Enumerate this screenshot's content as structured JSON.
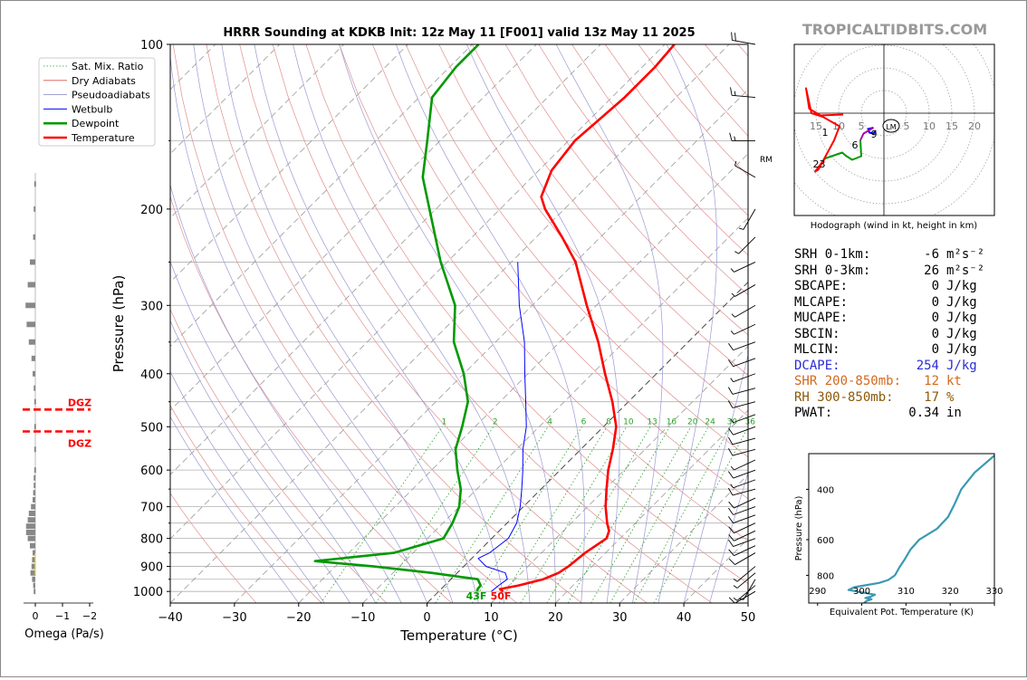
{
  "source_label": "TROPICALTIDBITS.COM",
  "chart_data": [
    {
      "type": "line",
      "chart": "skew-t",
      "title": "HRRR Sounding at KDKB Init: 12z May 11 [F001] valid 13z May 11 2025",
      "xlabel": "Temperature (°C)",
      "ylabel": "Pressure (hPa)",
      "log_y": true,
      "xlim": [
        -40,
        50
      ],
      "ylim": [
        1050,
        100
      ],
      "x_ticks": [
        "−40",
        "−30",
        "−20",
        "−10",
        "0",
        "10",
        "20",
        "30",
        "40",
        "50"
      ],
      "y_ticks": [
        "100",
        "200",
        "300",
        "400",
        "500",
        "600",
        "700",
        "800",
        "900",
        "1000"
      ],
      "mixing_ratio_labels": [
        "1",
        "2",
        "4",
        "6",
        "8",
        "10",
        "13",
        "16",
        "20",
        "24",
        "30",
        "36"
      ],
      "legend": {
        "position": "top-left",
        "entries": [
          {
            "label": "Sat. Mix. Ratio",
            "color": "#2ca02c",
            "style": "dotted"
          },
          {
            "label": "Dry Adiabats",
            "color": "#d9534f",
            "style": "solid"
          },
          {
            "label": "Pseudoadiabats",
            "color": "#8080c0",
            "style": "solid"
          },
          {
            "label": "Wetbulb",
            "color": "#0000ff",
            "style": "solid"
          },
          {
            "label": "Dewpoint",
            "color": "#009900",
            "style": "solid"
          },
          {
            "label": "Temperature",
            "color": "#ff0000",
            "style": "solid"
          }
        ]
      },
      "surface_labels": {
        "dewpoint": "43F",
        "temperature": "50F"
      },
      "series": [
        {
          "name": "Temperature",
          "color": "#ff0000",
          "points": [
            [
              1000,
              10.0
            ],
            [
              990,
              9.2
            ],
            [
              975,
              11.5
            ],
            [
              950,
              14.4
            ],
            [
              925,
              15.8
            ],
            [
              900,
              16.3
            ],
            [
              850,
              16.8
            ],
            [
              800,
              17.9
            ],
            [
              775,
              17.1
            ],
            [
              750,
              15.6
            ],
            [
              700,
              12.8
            ],
            [
              650,
              10.2
            ],
            [
              600,
              7.5
            ],
            [
              550,
              5.0
            ],
            [
              500,
              2.0
            ],
            [
              450,
              -2.5
            ],
            [
              400,
              -8.0
            ],
            [
              350,
              -14.0
            ],
            [
              300,
              -21.5
            ],
            [
              250,
              -30.0
            ],
            [
              225,
              -36.0
            ],
            [
              200,
              -43.0
            ],
            [
              190,
              -45.5
            ],
            [
              170,
              -48.0
            ],
            [
              150,
              -49.0
            ],
            [
              125,
              -48.0
            ],
            [
              110,
              -48.0
            ],
            [
              100,
              -48.5
            ]
          ]
        },
        {
          "name": "Dewpoint",
          "color": "#009900",
          "points": [
            [
              1000,
              6.0
            ],
            [
              990,
              5.7
            ],
            [
              975,
              5.6
            ],
            [
              950,
              4.2
            ],
            [
              925,
              -4.0
            ],
            [
              900,
              -14.0
            ],
            [
              880,
              -24.0
            ],
            [
              850,
              -13.0
            ],
            [
              800,
              -7.5
            ],
            [
              775,
              -8.0
            ],
            [
              750,
              -8.5
            ],
            [
              700,
              -10.0
            ],
            [
              650,
              -12.5
            ],
            [
              600,
              -16.0
            ],
            [
              550,
              -19.5
            ],
            [
              500,
              -22.0
            ],
            [
              450,
              -25.0
            ],
            [
              400,
              -30.0
            ],
            [
              350,
              -36.5
            ],
            [
              300,
              -42.0
            ],
            [
              250,
              -51.0
            ],
            [
              200,
              -61.0
            ],
            [
              175,
              -67.0
            ],
            [
              150,
              -72.0
            ],
            [
              125,
              -78.0
            ],
            [
              110,
              -79.0
            ],
            [
              100,
              -79.0
            ]
          ]
        },
        {
          "name": "Wetbulb",
          "color": "#0000ff",
          "points": [
            [
              1000,
              8.2
            ],
            [
              975,
              8.4
            ],
            [
              950,
              8.8
            ],
            [
              925,
              7.5
            ],
            [
              900,
              3.5
            ],
            [
              870,
              1.0
            ],
            [
              850,
              1.9
            ],
            [
              800,
              2.6
            ],
            [
              750,
              1.5
            ],
            [
              700,
              -0.5
            ],
            [
              650,
              -3.0
            ],
            [
              600,
              -5.8
            ],
            [
              550,
              -9.0
            ],
            [
              500,
              -12.0
            ],
            [
              450,
              -16.0
            ],
            [
              400,
              -20.5
            ],
            [
              350,
              -25.5
            ],
            [
              300,
              -32.0
            ],
            [
              250,
              -39.0
            ]
          ]
        }
      ]
    },
    {
      "type": "bar",
      "chart": "omega",
      "xlabel": "Omega (Pa/s)",
      "x_ticks": [
        "0",
        "−1",
        "−2"
      ],
      "annotations": [
        "DGZ",
        "DGZ"
      ],
      "dgz_pressures": [
        465,
        510
      ],
      "bars": [
        [
          1000,
          0.03
        ],
        [
          975,
          0.04
        ],
        [
          950,
          0.06
        ],
        [
          925,
          0.09
        ],
        [
          900,
          0.07
        ],
        [
          875,
          0.06
        ],
        [
          850,
          0.05
        ],
        [
          825,
          0.1
        ],
        [
          800,
          0.14
        ],
        [
          780,
          0.17
        ],
        [
          760,
          0.17
        ],
        [
          740,
          0.14
        ],
        [
          720,
          0.12
        ],
        [
          700,
          0.08
        ],
        [
          680,
          0.05
        ],
        [
          660,
          0.04
        ],
        [
          640,
          0.03
        ],
        [
          620,
          0.03
        ],
        [
          600,
          0.02
        ],
        [
          550,
          0.02
        ],
        [
          500,
          0.02
        ],
        [
          450,
          0.02
        ],
        [
          425,
          0.03
        ],
        [
          400,
          0.05
        ],
        [
          375,
          0.07
        ],
        [
          350,
          0.12
        ],
        [
          325,
          0.16
        ],
        [
          300,
          0.18
        ],
        [
          275,
          0.14
        ],
        [
          250,
          0.1
        ],
        [
          225,
          0.04
        ],
        [
          200,
          0.03
        ],
        [
          180,
          0.02
        ]
      ]
    },
    {
      "type": "line",
      "chart": "hodograph",
      "caption": "Hodograph (wind in kt, height in km)",
      "ring_labels": [
        "15",
        "10",
        "5",
        "5",
        "10",
        "15",
        "20"
      ],
      "storm_motion_label": "LM",
      "height_labels": [
        "1",
        "6",
        "9",
        "2",
        "3"
      ],
      "rings_kt": [
        5,
        10,
        15,
        20,
        25
      ],
      "segments": [
        {
          "color": "#0000ff",
          "points": [
            [
              -1.8,
              -3.8
            ],
            [
              -2.3,
              -4.5
            ],
            [
              -3.2,
              -4.3
            ],
            [
              -3.5,
              -3.5
            ],
            [
              -2.3,
              -3.2
            ]
          ]
        },
        {
          "color": "#b000b0",
          "points": [
            [
              -2.3,
              -3.2
            ],
            [
              -4.5,
              -4.5
            ],
            [
              -5.2,
              -6.0
            ]
          ]
        },
        {
          "color": "#009900",
          "points": [
            [
              -5.2,
              -6.0
            ],
            [
              -5.0,
              -9.5
            ],
            [
              -7.0,
              -10.3
            ],
            [
              -8.4,
              -9.4
            ],
            [
              -9.2,
              -8.7
            ],
            [
              -13.0,
              -10.0
            ]
          ]
        },
        {
          "color": "#ff0000",
          "points": [
            [
              -13.0,
              -10.0
            ],
            [
              -15.2,
              -12.9
            ],
            [
              -14.5,
              -12.5
            ],
            [
              -11.0,
              -6.0
            ],
            [
              -9.8,
              -2.9
            ],
            [
              -13.5,
              -0.8
            ],
            [
              -16.0,
              0.0
            ],
            [
              -17.2,
              5.5
            ],
            [
              -16.5,
              1.0
            ],
            [
              -14.0,
              -0.5
            ],
            [
              -9.0,
              -0.3
            ]
          ]
        }
      ]
    },
    {
      "type": "line",
      "chart": "theta-e",
      "xlabel": "Equivalent Pot. Temperature (K)",
      "ylabel": "Pressure (hPa)",
      "xlim": [
        288,
        330
      ],
      "x_ticks": [
        "290",
        "300",
        "310",
        "320",
        "330"
      ],
      "y_ticks": [
        "400",
        "600",
        "800"
      ],
      "points": [
        [
          1000,
          300.5
        ],
        [
          985,
          301.0
        ],
        [
          970,
          302.2
        ],
        [
          960,
          300.8
        ],
        [
          950,
          302.0
        ],
        [
          935,
          303.0
        ],
        [
          900,
          297.0
        ],
        [
          880,
          298.3
        ],
        [
          850,
          304.0
        ],
        [
          830,
          306.0
        ],
        [
          800,
          307.5
        ],
        [
          750,
          308.5
        ],
        [
          700,
          309.8
        ],
        [
          650,
          311.0
        ],
        [
          600,
          313.0
        ],
        [
          550,
          317.0
        ],
        [
          500,
          319.5
        ],
        [
          450,
          321.0
        ],
        [
          400,
          322.5
        ],
        [
          350,
          325.5
        ],
        [
          300,
          330.5
        ]
      ]
    }
  ],
  "params": [
    {
      "label": "SRH 0-1km:",
      "value": "-6",
      "unit": "m²s⁻²",
      "color": "#000000"
    },
    {
      "label": "SRH 0-3km:",
      "value": "26",
      "unit": "m²s⁻²",
      "color": "#000000"
    },
    {
      "label": "SBCAPE:",
      "value": "0",
      "unit": "J/kg",
      "color": "#000000"
    },
    {
      "label": "MLCAPE:",
      "value": "0",
      "unit": "J/kg",
      "color": "#000000"
    },
    {
      "label": "MUCAPE:",
      "value": "0",
      "unit": "J/kg",
      "color": "#000000"
    },
    {
      "label": "SBCIN:",
      "value": "0",
      "unit": "J/kg",
      "color": "#000000"
    },
    {
      "label": "MLCIN:",
      "value": "0",
      "unit": "J/kg",
      "color": "#000000"
    },
    {
      "label": "DCAPE:",
      "value": "254",
      "unit": "J/kg",
      "color": "#2b2bd6"
    },
    {
      "label": "SHR 200-850mb:",
      "value": "12",
      "unit": "kt",
      "color": "#d2691e"
    },
    {
      "label": "RH 300-850mb:",
      "value": "17",
      "unit": "%",
      "color": "#8b5a0a"
    },
    {
      "label": "PWAT:",
      "value": "0.34",
      "unit": "in",
      "color": "#000000"
    }
  ],
  "wind_barbs": {
    "storm_motion_label": "RM",
    "levels": [
      [
        1000,
        10,
        240
      ],
      [
        975,
        5,
        230
      ],
      [
        950,
        5,
        210
      ],
      [
        925,
        5,
        230
      ],
      [
        900,
        5,
        230
      ],
      [
        850,
        10,
        240
      ],
      [
        825,
        10,
        245
      ],
      [
        800,
        10,
        250
      ],
      [
        775,
        10,
        245
      ],
      [
        750,
        10,
        245
      ],
      [
        725,
        10,
        250
      ],
      [
        700,
        10,
        250
      ],
      [
        675,
        10,
        245
      ],
      [
        650,
        10,
        255
      ],
      [
        625,
        5,
        250
      ],
      [
        600,
        10,
        250
      ],
      [
        575,
        5,
        245
      ],
      [
        550,
        10,
        255
      ],
      [
        525,
        10,
        255
      ],
      [
        500,
        10,
        250
      ],
      [
        475,
        5,
        250
      ],
      [
        450,
        10,
        255
      ],
      [
        425,
        10,
        255
      ],
      [
        400,
        5,
        250
      ],
      [
        375,
        10,
        250
      ],
      [
        350,
        10,
        250
      ],
      [
        325,
        5,
        245
      ],
      [
        300,
        5,
        240
      ],
      [
        275,
        5,
        240
      ],
      [
        250,
        5,
        245
      ],
      [
        225,
        5,
        225
      ],
      [
        200,
        5,
        210
      ],
      [
        175,
        5,
        300
      ],
      [
        150,
        15,
        270
      ],
      [
        125,
        15,
        275
      ],
      [
        100,
        20,
        280
      ]
    ]
  }
}
